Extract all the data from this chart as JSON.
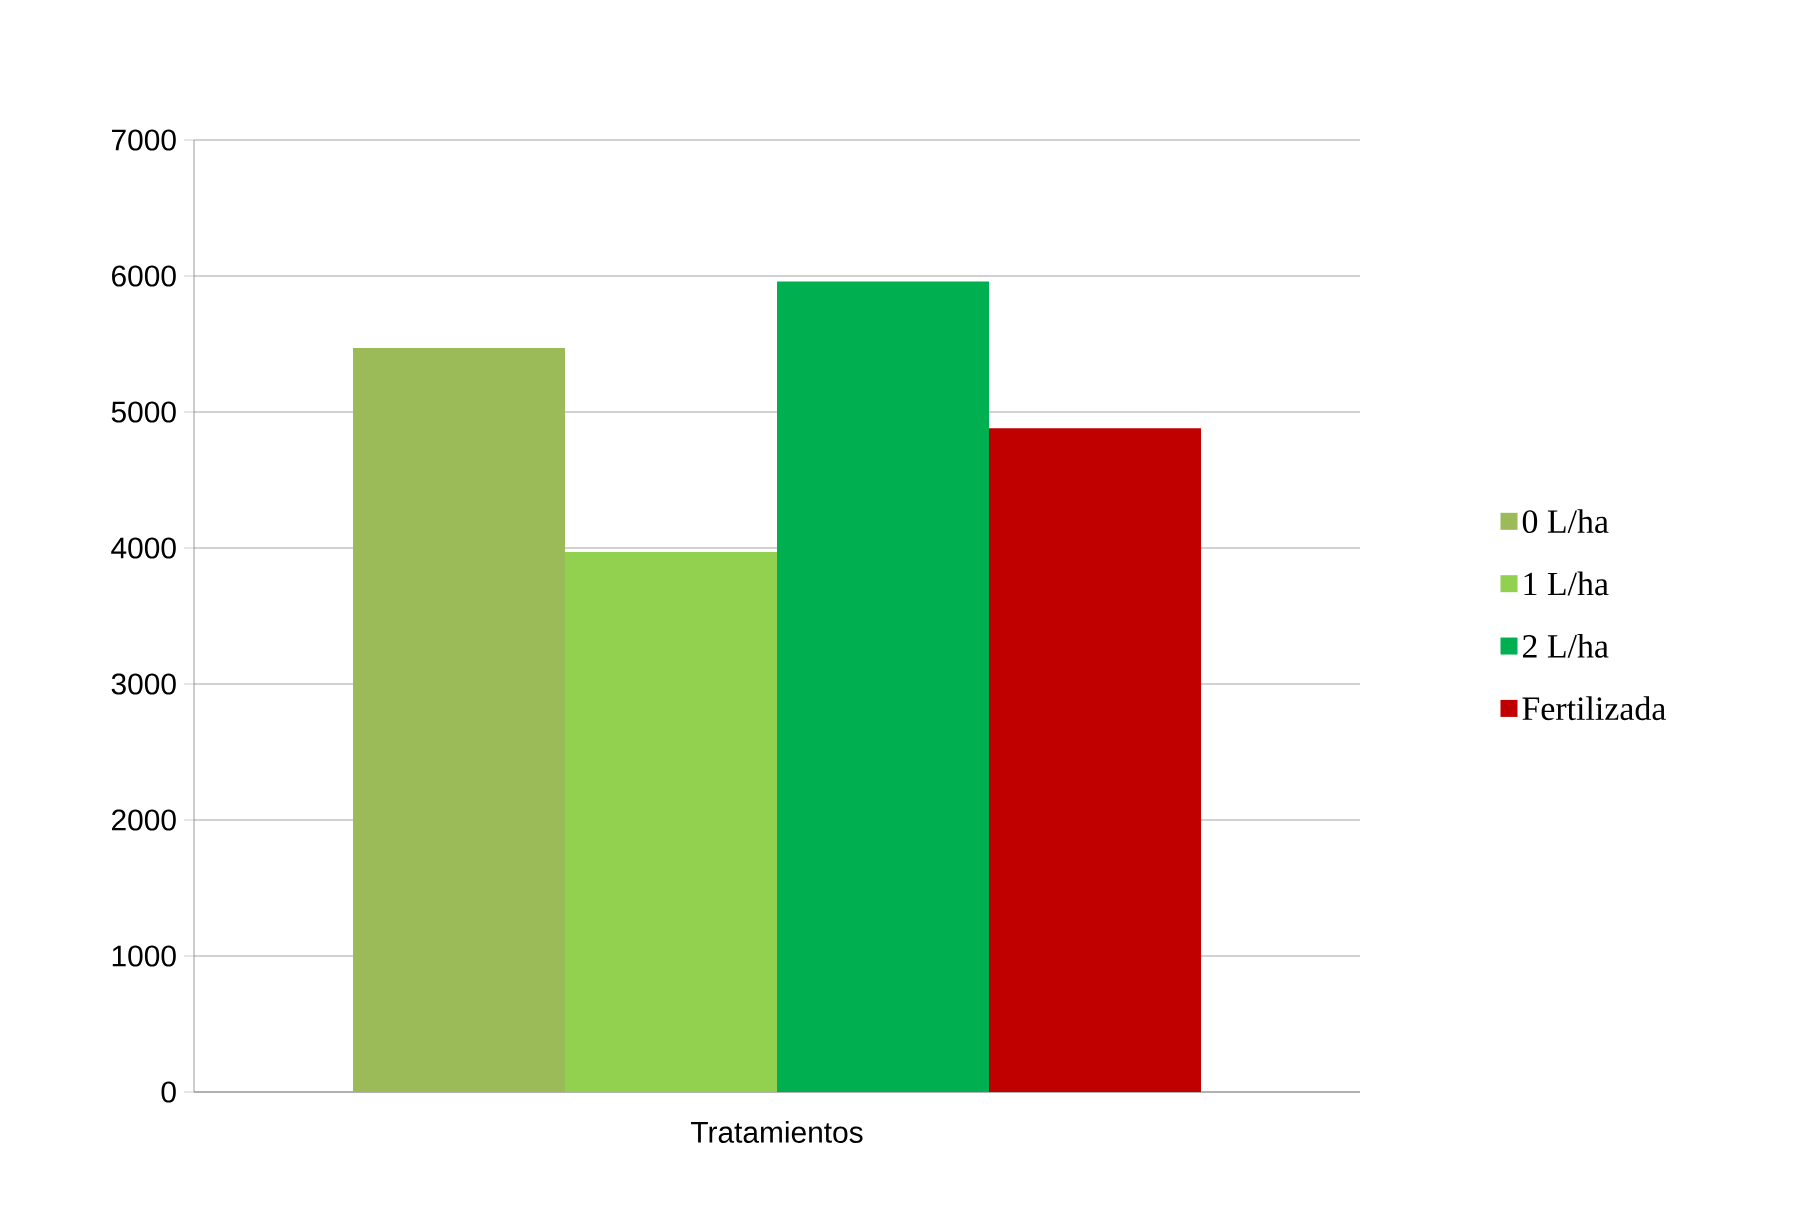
{
  "chart_data": {
    "type": "bar",
    "categories": [
      "Tratamientos"
    ],
    "series": [
      {
        "name": "0 L/ha",
        "color": "#9bbb59",
        "values": [
          5470
        ]
      },
      {
        "name": "1 L/ha",
        "color": "#92d050",
        "values": [
          3970
        ]
      },
      {
        "name": "2 L/ha",
        "color": "#00b050",
        "values": [
          5960
        ]
      },
      {
        "name": "Fertilizada",
        "color": "#c00000",
        "values": [
          4880
        ]
      }
    ],
    "ylim": [
      0,
      7000
    ],
    "yticks": [
      0,
      1000,
      2000,
      3000,
      4000,
      5000,
      6000,
      7000
    ],
    "grid": "y",
    "legend": "right"
  }
}
